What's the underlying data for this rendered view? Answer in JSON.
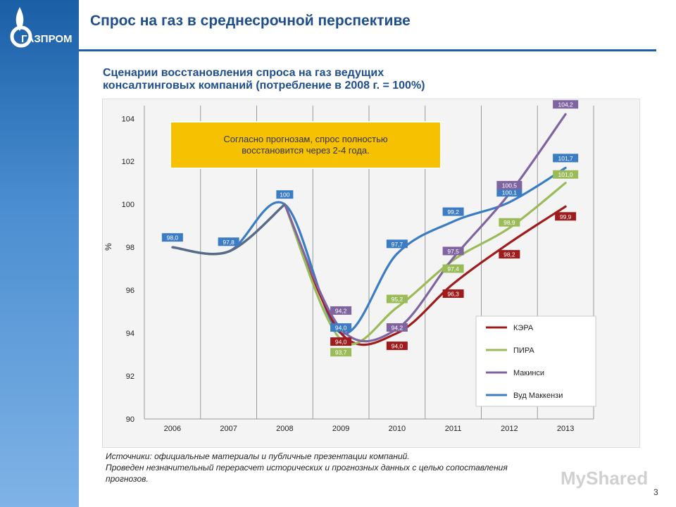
{
  "header": {
    "title": "Спрос на газ в среднесрочной перспективе",
    "logo_text": "ГАЗПРОМ"
  },
  "subtitle": {
    "line1": "Сценарии восстановления спроса на газ ведущих",
    "line2": "консалтинговых компаний (потребление в 2008 г. = 100%)"
  },
  "callout": {
    "line1": "Согласно прогнозам, спрос полностью",
    "line2": "восстановится через 2-4 года."
  },
  "sources": {
    "line1": "Источники: официальные материалы и публичные презентации компаний.",
    "line2": "Проведен незначительный перерасчет исторических и прогнозных данных с целью сопоставления",
    "line3": "прогнозов."
  },
  "page_number": "3",
  "watermark": "MyShared",
  "colors": {
    "КЭРА": "#a01c1c",
    "ПИРА": "#9bbb59",
    "Макинси": "#8064a2",
    "Вуд Маккензи": "#3b7cc4"
  },
  "chart_data": {
    "type": "line",
    "ylabel": "%",
    "ylim": [
      90,
      104.6
    ],
    "yticks": [
      90,
      92,
      94,
      96,
      98,
      100,
      102,
      104
    ],
    "categories": [
      "2006",
      "2007",
      "2008",
      "2009",
      "2010",
      "2011",
      "2012",
      "2013"
    ],
    "legend_position": "bottom-right",
    "series": [
      {
        "name": "Вуд Маккензи",
        "values": [
          98.0,
          97.8,
          100,
          94.0,
          97.7,
          99.2,
          100.1,
          101.7
        ],
        "labels": [
          "98,0",
          "97,8",
          "100",
          "94,0",
          "97,7",
          "99,2",
          "100,1",
          "101,7"
        ]
      },
      {
        "name": "Макинси",
        "values": [
          null,
          null,
          null,
          94.2,
          94.2,
          97.5,
          100.5,
          104.2
        ],
        "labels": [
          "",
          "",
          "",
          "94,2",
          "94,2",
          "97,5",
          "100,5",
          "104,2"
        ]
      },
      {
        "name": "ПИРА",
        "values": [
          null,
          null,
          null,
          93.7,
          95.2,
          97.4,
          98.9,
          101.0
        ],
        "labels": [
          "",
          "",
          "",
          "93,7",
          "95,2",
          "97,4",
          "98,9",
          "101,0"
        ]
      },
      {
        "name": "КЭРА",
        "values": [
          null,
          null,
          null,
          94.0,
          94.0,
          96.3,
          98.2,
          99.9
        ],
        "labels": [
          "",
          "",
          "",
          "94,0",
          "94,0",
          "96,3",
          "98,2",
          "99,9"
        ]
      }
    ],
    "legend": [
      "КЭРА",
      "ПИРА",
      "Макинси",
      "Вуд Маккензи"
    ]
  }
}
